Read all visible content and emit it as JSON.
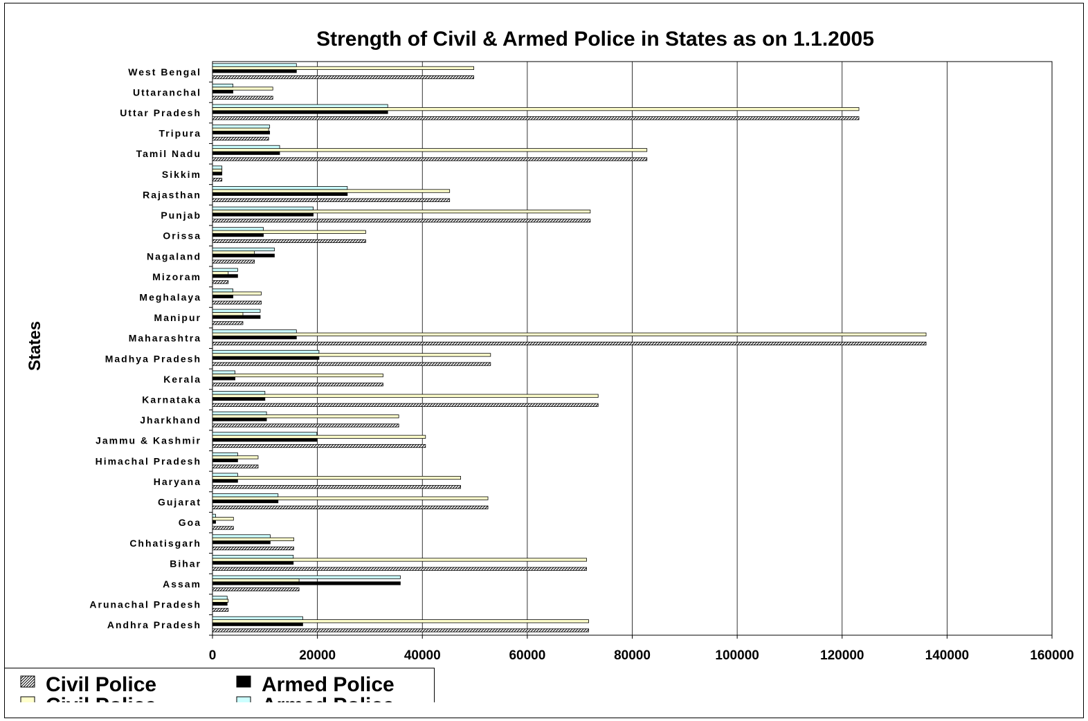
{
  "chart_data": {
    "type": "bar",
    "orientation": "horizontal",
    "title": "Strength of Civil & Armed Police in States as on 1.1.2005",
    "xlabel": "",
    "ylabel": "States",
    "xlim": [
      0,
      160000
    ],
    "xticks": [
      0,
      20000,
      40000,
      60000,
      80000,
      100000,
      120000,
      140000,
      160000
    ],
    "grid": "vertical",
    "legend_position": "bottom-left",
    "categories": [
      "Andhra Pradesh",
      "Arunachal  Pradesh",
      "Assam",
      "Bihar",
      "Chhatisgarh",
      "Goa",
      "Gujarat",
      "Haryana",
      "Himachal Pradesh",
      "Jammu & Kashmir",
      "Jharkhand",
      "Karnataka",
      "Kerala",
      "Madhya Pradesh",
      "Maharashtra",
      "Manipur",
      "Meghalaya",
      "Mizoram",
      "Nagaland",
      "Orissa",
      "Punjab",
      "Rajasthan",
      "Sikkim",
      "Tamil Nadu",
      "Tripura",
      "Uttar Pradesh",
      "Uttaranchal",
      "West Bengal"
    ],
    "series": [
      {
        "name": "Civil Police",
        "color": "#ffffff",
        "pattern": "hatch",
        "values": [
          71700,
          3000,
          16500,
          71300,
          15500,
          4000,
          52500,
          47300,
          8700,
          40600,
          35500,
          73500,
          32500,
          53000,
          136000,
          5800,
          9300,
          3000,
          8000,
          29200,
          72000,
          45200,
          1800,
          82800,
          10700,
          123200,
          11500,
          49800
        ]
      },
      {
        "name": "Armed Police",
        "color": "#000000",
        "values": [
          17200,
          2800,
          35800,
          15400,
          11000,
          600,
          12500,
          4800,
          4800,
          19900,
          10300,
          10000,
          4300,
          20300,
          16000,
          9100,
          3900,
          4800,
          11800,
          9700,
          19200,
          25700,
          1800,
          12800,
          10900,
          33400,
          3900,
          16000
        ]
      },
      {
        "name": "Civil Police",
        "color": "#ffffcc",
        "values": [
          71700,
          3000,
          16500,
          71300,
          15500,
          4000,
          52500,
          47300,
          8700,
          40600,
          35500,
          73500,
          32500,
          53000,
          136000,
          5800,
          9300,
          3000,
          8000,
          29200,
          72000,
          45200,
          1800,
          82800,
          10700,
          123200,
          11500,
          49800
        ]
      },
      {
        "name": "Armed Police",
        "color": "#ccffff",
        "values": [
          17200,
          2800,
          35800,
          15400,
          11000,
          600,
          12500,
          4800,
          4800,
          19900,
          10300,
          10000,
          4300,
          20300,
          16000,
          9100,
          3900,
          4800,
          11800,
          9700,
          19200,
          25700,
          1800,
          12800,
          10900,
          33400,
          3900,
          16000
        ]
      }
    ]
  }
}
